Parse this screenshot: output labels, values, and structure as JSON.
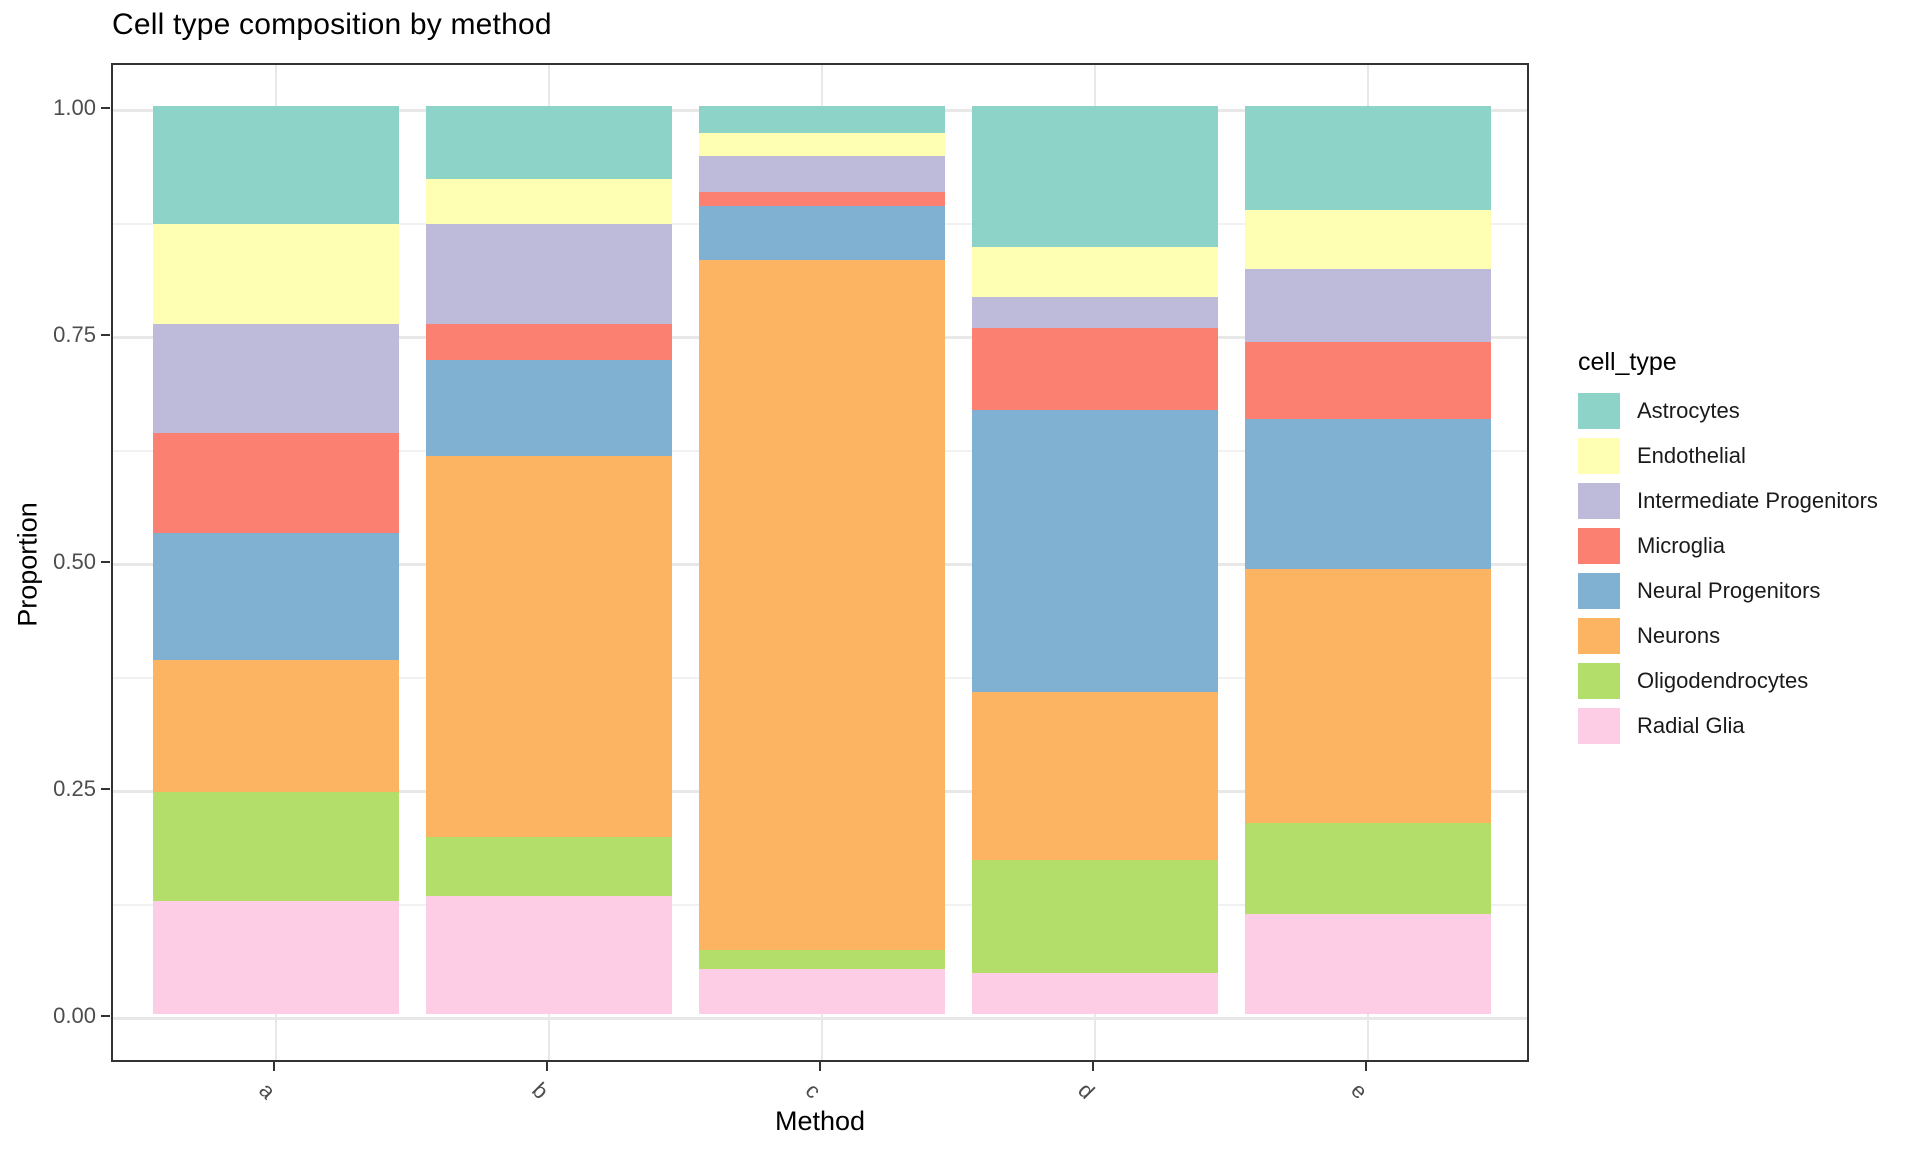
{
  "title": "Cell type composition by method",
  "x_axis": {
    "title": "Method",
    "categories": [
      "a",
      "b",
      "c",
      "d",
      "e"
    ]
  },
  "y_axis": {
    "title": "Proportion",
    "ticks": [
      {
        "label": "1.00",
        "value": 1.0
      },
      {
        "label": "0.75",
        "value": 0.75
      },
      {
        "label": "0.50",
        "value": 0.5
      },
      {
        "label": "0.25",
        "value": 0.25
      },
      {
        "label": "0.00",
        "value": 0.0
      }
    ]
  },
  "legend": {
    "title": "cell_type",
    "items": [
      {
        "label": "Astrocytes",
        "color": "#8DD3C7"
      },
      {
        "label": "Endothelial",
        "color": "#FFFFB3"
      },
      {
        "label": "Intermediate Progenitors",
        "color": "#BEBADA"
      },
      {
        "label": "Microglia",
        "color": "#FB8072"
      },
      {
        "label": "Neural Progenitors",
        "color": "#80B1D3"
      },
      {
        "label": "Neurons",
        "color": "#FDB462"
      },
      {
        "label": "Oligodendrocytes",
        "color": "#B3DE69"
      },
      {
        "label": "Radial Glia",
        "color": "#FCCDE5"
      }
    ]
  },
  "chart_data": {
    "type": "bar",
    "stacked": true,
    "normalized": true,
    "title": "Cell type composition by method",
    "xlabel": "Method",
    "ylabel": "Proportion",
    "ylim": [
      0,
      1
    ],
    "grid": true,
    "legend_position": "right",
    "categories": [
      "a",
      "b",
      "c",
      "d",
      "e"
    ],
    "stack_order_bottom_to_top": [
      "Radial Glia",
      "Oligodendrocytes",
      "Neurons",
      "Neural Progenitors",
      "Microglia",
      "Intermediate Progenitors",
      "Endothelial",
      "Astrocytes"
    ],
    "series": [
      {
        "name": "Astrocytes",
        "color": "#8DD3C7",
        "values": [
          0.13,
          0.08,
          0.03,
          0.155,
          0.115
        ]
      },
      {
        "name": "Endothelial",
        "color": "#FFFFB3",
        "values": [
          0.11,
          0.05,
          0.025,
          0.055,
          0.065
        ]
      },
      {
        "name": "Intermediate Progenitors",
        "color": "#BEBADA",
        "values": [
          0.12,
          0.11,
          0.04,
          0.035,
          0.08
        ]
      },
      {
        "name": "Microglia",
        "color": "#FB8072",
        "values": [
          0.11,
          0.04,
          0.015,
          0.09,
          0.085
        ]
      },
      {
        "name": "Neural Progenitors",
        "color": "#80B1D3",
        "values": [
          0.14,
          0.105,
          0.06,
          0.31,
          0.165
        ]
      },
      {
        "name": "Neurons",
        "color": "#FDB462",
        "values": [
          0.145,
          0.42,
          0.76,
          0.185,
          0.28
        ]
      },
      {
        "name": "Oligodendrocytes",
        "color": "#B3DE69",
        "values": [
          0.12,
          0.065,
          0.02,
          0.125,
          0.1
        ]
      },
      {
        "name": "Radial Glia",
        "color": "#FCCDE5",
        "values": [
          0.125,
          0.13,
          0.05,
          0.045,
          0.11
        ]
      }
    ]
  }
}
